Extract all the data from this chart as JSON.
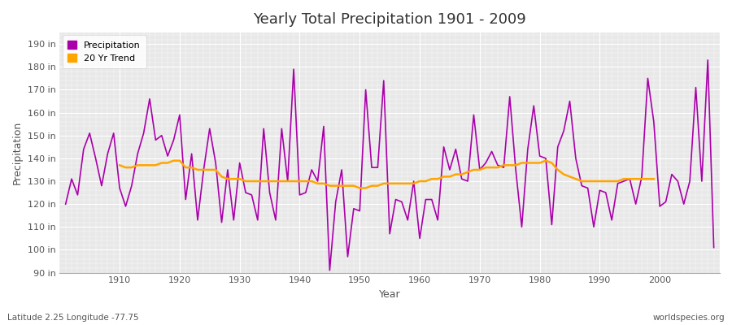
{
  "title": "Yearly Total Precipitation 1901 - 2009",
  "xlabel": "Year",
  "ylabel": "Precipitation",
  "subtitle": "Latitude 2.25 Longitude -77.75",
  "watermark": "worldspecies.org",
  "fig_bg_color": "#ffffff",
  "plot_bg_color": "#e8e8e8",
  "precip_color": "#aa00aa",
  "trend_color": "#ffa500",
  "ylim": [
    90,
    195
  ],
  "yticks": [
    90,
    100,
    110,
    120,
    130,
    140,
    150,
    160,
    170,
    180,
    190
  ],
  "years": [
    1901,
    1902,
    1903,
    1904,
    1905,
    1906,
    1907,
    1908,
    1909,
    1910,
    1911,
    1912,
    1913,
    1914,
    1915,
    1916,
    1917,
    1918,
    1919,
    1920,
    1921,
    1922,
    1923,
    1924,
    1925,
    1926,
    1927,
    1928,
    1929,
    1930,
    1931,
    1932,
    1933,
    1934,
    1935,
    1936,
    1937,
    1938,
    1939,
    1940,
    1941,
    1942,
    1943,
    1944,
    1945,
    1946,
    1947,
    1948,
    1949,
    1950,
    1951,
    1952,
    1953,
    1954,
    1955,
    1956,
    1957,
    1958,
    1959,
    1960,
    1961,
    1962,
    1963,
    1964,
    1965,
    1966,
    1967,
    1968,
    1969,
    1970,
    1971,
    1972,
    1973,
    1974,
    1975,
    1976,
    1977,
    1978,
    1979,
    1980,
    1981,
    1982,
    1983,
    1984,
    1985,
    1986,
    1987,
    1988,
    1989,
    1990,
    1991,
    1992,
    1993,
    1994,
    1995,
    1996,
    1997,
    1998,
    1999,
    2000,
    2001,
    2002,
    2003,
    2004,
    2005,
    2006,
    2007,
    2008,
    2009
  ],
  "precip": [
    120,
    131,
    124,
    144,
    151,
    140,
    128,
    142,
    151,
    127,
    119,
    128,
    142,
    151,
    166,
    148,
    150,
    141,
    148,
    159,
    122,
    142,
    113,
    135,
    153,
    138,
    112,
    135,
    113,
    138,
    125,
    124,
    113,
    153,
    125,
    113,
    153,
    130,
    179,
    124,
    125,
    135,
    130,
    154,
    91,
    121,
    135,
    97,
    118,
    117,
    170,
    136,
    136,
    174,
    107,
    122,
    121,
    113,
    130,
    105,
    122,
    122,
    113,
    145,
    135,
    144,
    131,
    130,
    159,
    135,
    138,
    143,
    137,
    136,
    167,
    135,
    110,
    144,
    163,
    141,
    140,
    111,
    145,
    152,
    165,
    140,
    128,
    127,
    110,
    126,
    125,
    113,
    129,
    130,
    131,
    120,
    132,
    175,
    156,
    119,
    121,
    133,
    130,
    120,
    130,
    171,
    130,
    183,
    101
  ],
  "trend": [
    null,
    null,
    null,
    null,
    null,
    null,
    null,
    null,
    null,
    137,
    136,
    136,
    137,
    137,
    137,
    137,
    138,
    138,
    139,
    139,
    136,
    136,
    135,
    135,
    135,
    135,
    132,
    131,
    131,
    131,
    130,
    130,
    130,
    130,
    130,
    130,
    130,
    130,
    130,
    130,
    130,
    130,
    129,
    129,
    128,
    128,
    128,
    128,
    128,
    127,
    127,
    128,
    128,
    129,
    129,
    129,
    129,
    129,
    129,
    130,
    130,
    131,
    131,
    132,
    132,
    133,
    133,
    134,
    135,
    135,
    136,
    136,
    136,
    137,
    137,
    137,
    138,
    138,
    138,
    138,
    139,
    138,
    135,
    133,
    132,
    131,
    130,
    130,
    130,
    130,
    130,
    130,
    130,
    131,
    131,
    131,
    131,
    131,
    131
  ]
}
